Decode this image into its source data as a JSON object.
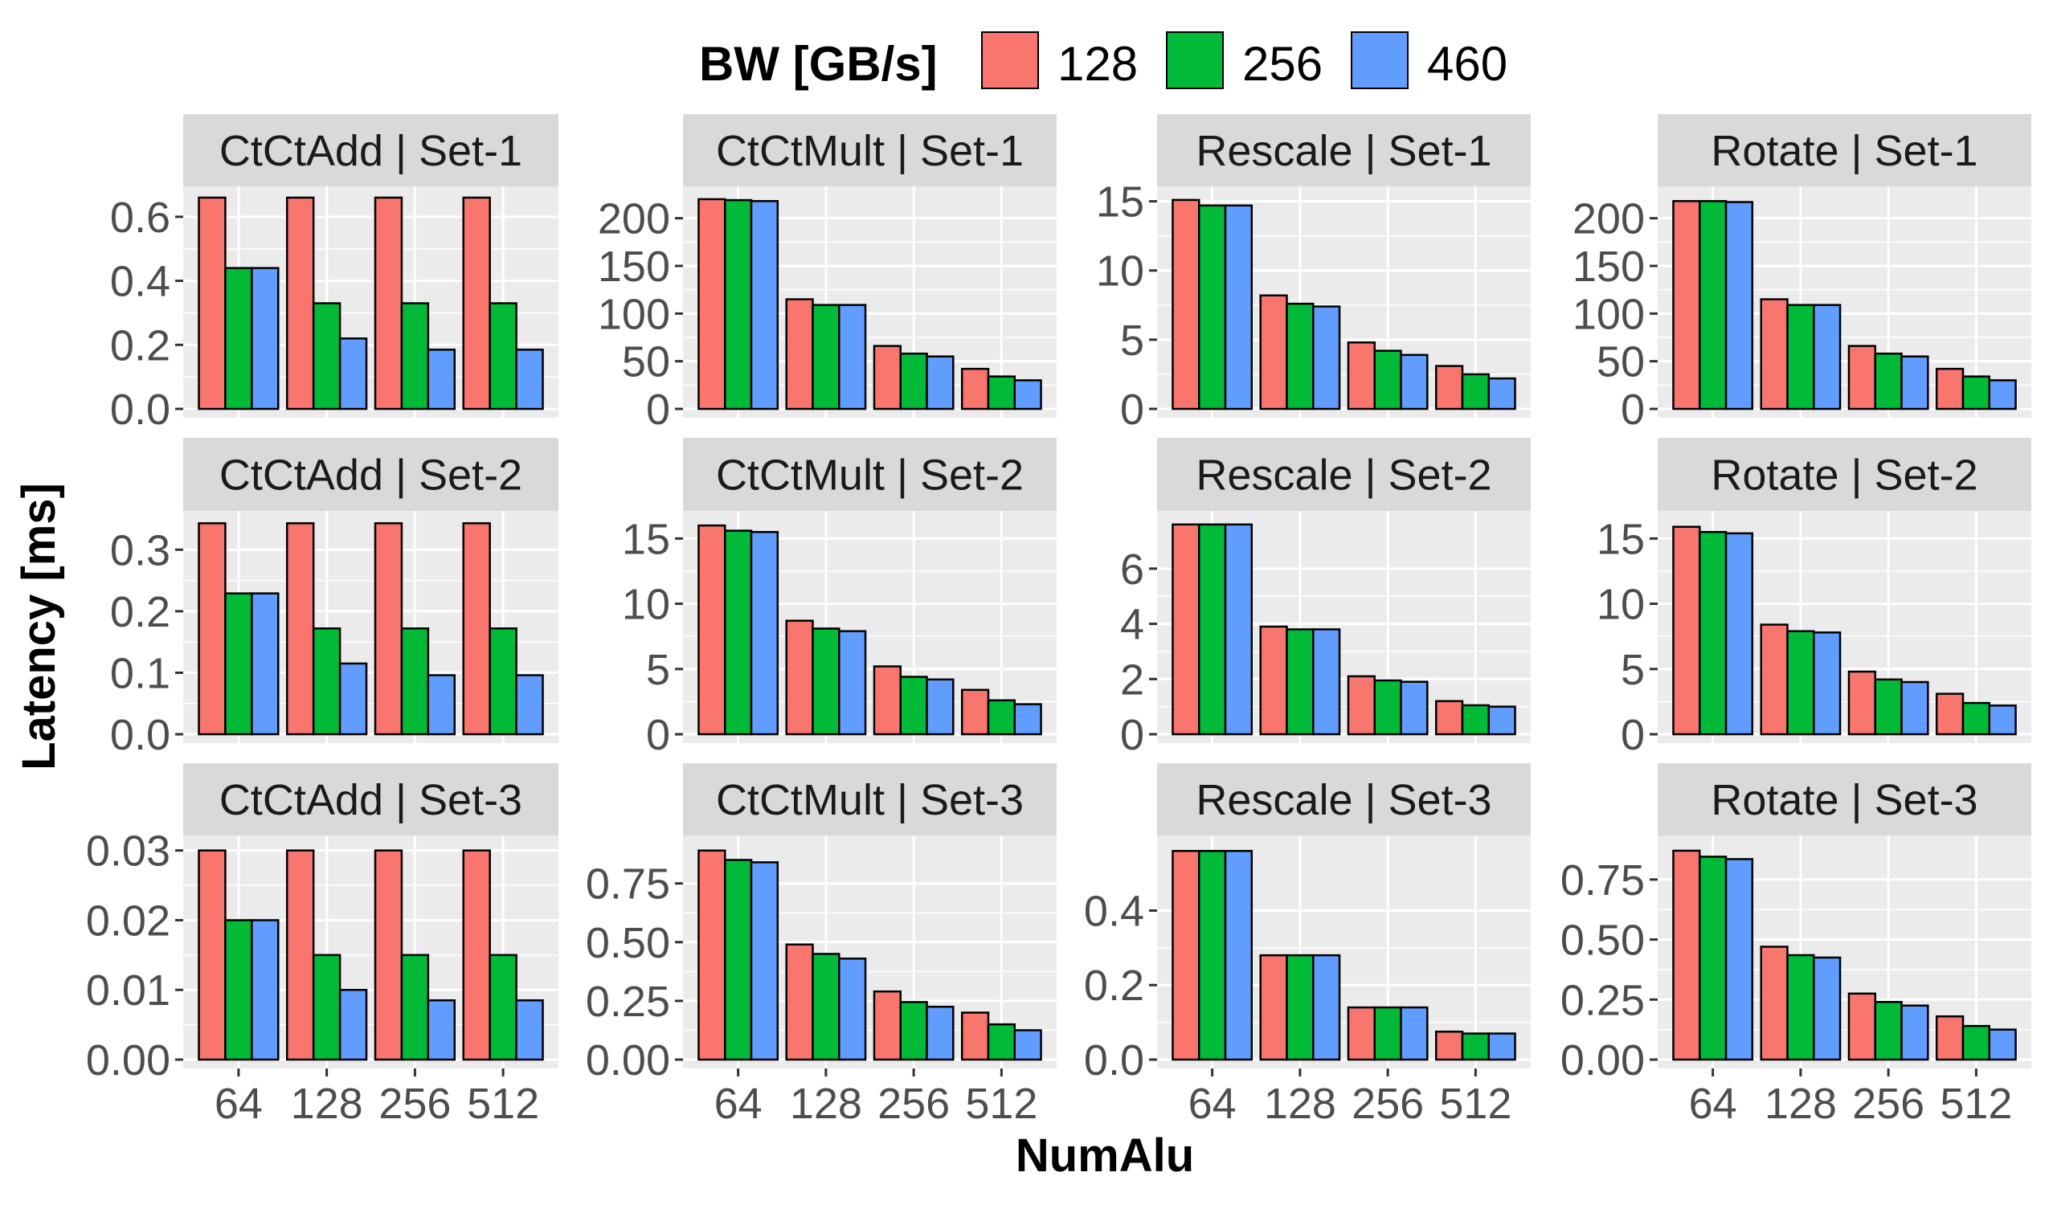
{
  "chart_data": {
    "type": "bar",
    "ylabel": "Latency [ms]",
    "xlabel": "NumAlu",
    "legend": {
      "title": "BW [GB/s]",
      "placement": "top",
      "entries": [
        "128",
        "256",
        "460"
      ],
      "colors": [
        "#F8766D",
        "#00BA38",
        "#619CFF"
      ]
    },
    "categories": [
      "64",
      "128",
      "256",
      "512"
    ],
    "grid": true,
    "facet_rows": [
      "Set-1",
      "Set-2",
      "Set-3"
    ],
    "facet_cols": [
      "CtCtAdd",
      "CtCtMult",
      "Rescale",
      "Rotate"
    ],
    "row_ylims": [
      [
        0,
        0.6
      ],
      [
        0,
        0.36
      ],
      [
        0,
        0.031
      ]
    ],
    "panels": [
      {
        "title": "CtCtAdd | Set-1",
        "ylim": [
          0,
          0.67
        ],
        "yticks": [
          "0.0",
          "0.2",
          "0.4",
          "0.6"
        ],
        "ytick_values": [
          0,
          0.2,
          0.4,
          0.6
        ],
        "series": [
          {
            "name": "128",
            "values": [
              0.66,
              0.66,
              0.66,
              0.66
            ]
          },
          {
            "name": "256",
            "values": [
              0.44,
              0.33,
              0.33,
              0.33
            ]
          },
          {
            "name": "460",
            "values": [
              0.44,
              0.22,
              0.185,
              0.185
            ]
          }
        ]
      },
      {
        "title": "CtCtMult | Set-1",
        "ylim": [
          0,
          225
        ],
        "yticks": [
          "0",
          "50",
          "100",
          "150",
          "200"
        ],
        "ytick_values": [
          0,
          50,
          100,
          150,
          200
        ],
        "series": [
          {
            "name": "128",
            "values": [
              220,
              115,
              66,
              42
            ]
          },
          {
            "name": "256",
            "values": [
              219,
              109,
              58,
              34
            ]
          },
          {
            "name": "460",
            "values": [
              218,
              109,
              55,
              30
            ]
          }
        ]
      },
      {
        "title": "Rescale | Set-1",
        "ylim": [
          0,
          15.5
        ],
        "yticks": [
          "0",
          "5",
          "10",
          "15"
        ],
        "ytick_values": [
          0,
          5,
          10,
          15
        ],
        "series": [
          {
            "name": "128",
            "values": [
              15.1,
              8.2,
              4.8,
              3.1
            ]
          },
          {
            "name": "256",
            "values": [
              14.7,
              7.6,
              4.2,
              2.5
            ]
          },
          {
            "name": "460",
            "values": [
              14.7,
              7.4,
              3.9,
              2.2
            ]
          }
        ]
      },
      {
        "title": "Rotate | Set-1",
        "ylim": [
          0,
          225
        ],
        "yticks": [
          "0",
          "50",
          "100",
          "150",
          "200"
        ],
        "ytick_values": [
          0,
          50,
          100,
          150,
          200
        ],
        "series": [
          {
            "name": "128",
            "values": [
              218,
              115,
              66,
              42
            ]
          },
          {
            "name": "256",
            "values": [
              218,
              109,
              58,
              34
            ]
          },
          {
            "name": "460",
            "values": [
              217,
              109,
              55,
              30
            ]
          }
        ]
      },
      {
        "title": "CtCtAdd | Set-2",
        "ylim": [
          0,
          0.35
        ],
        "yticks": [
          "0.0",
          "0.1",
          "0.2",
          "0.3"
        ],
        "ytick_values": [
          0,
          0.1,
          0.2,
          0.3
        ],
        "series": [
          {
            "name": "128",
            "values": [
              0.343,
              0.343,
              0.343,
              0.343
            ]
          },
          {
            "name": "256",
            "values": [
              0.229,
              0.172,
              0.172,
              0.172
            ]
          },
          {
            "name": "460",
            "values": [
              0.229,
              0.115,
              0.096,
              0.096
            ]
          }
        ]
      },
      {
        "title": "CtCtMult | Set-2",
        "ylim": [
          0,
          16.5
        ],
        "yticks": [
          "0",
          "5",
          "10",
          "15"
        ],
        "ytick_values": [
          0,
          5,
          10,
          15
        ],
        "series": [
          {
            "name": "128",
            "values": [
              16.0,
              8.7,
              5.2,
              3.4
            ]
          },
          {
            "name": "256",
            "values": [
              15.6,
              8.1,
              4.4,
              2.6
            ]
          },
          {
            "name": "460",
            "values": [
              15.5,
              7.9,
              4.2,
              2.3
            ]
          }
        ]
      },
      {
        "title": "Rescale | Set-2",
        "ylim": [
          0,
          7.8
        ],
        "yticks": [
          "0",
          "2",
          "4",
          "6"
        ],
        "ytick_values": [
          0,
          2,
          4,
          6
        ],
        "series": [
          {
            "name": "128",
            "values": [
              7.6,
              3.9,
              2.1,
              1.2
            ]
          },
          {
            "name": "256",
            "values": [
              7.6,
              3.8,
              1.95,
              1.05
            ]
          },
          {
            "name": "460",
            "values": [
              7.6,
              3.8,
              1.9,
              1.0
            ]
          }
        ]
      },
      {
        "title": "Rotate | Set-2",
        "ylim": [
          0,
          16.5
        ],
        "yticks": [
          "0",
          "5",
          "10",
          "15"
        ],
        "ytick_values": [
          0,
          5,
          10,
          15
        ],
        "series": [
          {
            "name": "128",
            "values": [
              15.9,
              8.4,
              4.8,
              3.1
            ]
          },
          {
            "name": "256",
            "values": [
              15.5,
              7.9,
              4.2,
              2.4
            ]
          },
          {
            "name": "460",
            "values": [
              15.4,
              7.8,
              4.0,
              2.2
            ]
          }
        ]
      },
      {
        "title": "CtCtAdd | Set-3",
        "ylim": [
          0,
          0.031
        ],
        "yticks": [
          "0.00",
          "0.01",
          "0.02",
          "0.03"
        ],
        "ytick_values": [
          0,
          0.01,
          0.02,
          0.03
        ],
        "series": [
          {
            "name": "128",
            "values": [
              0.03,
              0.03,
              0.03,
              0.03
            ]
          },
          {
            "name": "256",
            "values": [
              0.02,
              0.015,
              0.015,
              0.015
            ]
          },
          {
            "name": "460",
            "values": [
              0.02,
              0.01,
              0.0085,
              0.0085
            ]
          }
        ]
      },
      {
        "title": "CtCtMult | Set-3",
        "ylim": [
          0,
          0.92
        ],
        "yticks": [
          "0.00",
          "0.25",
          "0.50",
          "0.75"
        ],
        "ytick_values": [
          0,
          0.25,
          0.5,
          0.75
        ],
        "series": [
          {
            "name": "128",
            "values": [
              0.89,
              0.49,
              0.29,
              0.2
            ]
          },
          {
            "name": "256",
            "values": [
              0.85,
              0.45,
              0.245,
              0.15
            ]
          },
          {
            "name": "460",
            "values": [
              0.84,
              0.43,
              0.225,
              0.125
            ]
          }
        ]
      },
      {
        "title": "Rescale | Set-3",
        "ylim": [
          0,
          0.58
        ],
        "yticks": [
          "0.0",
          "0.2",
          "0.4"
        ],
        "ytick_values": [
          0,
          0.2,
          0.4
        ],
        "series": [
          {
            "name": "128",
            "values": [
              0.56,
              0.28,
              0.14,
              0.075
            ]
          },
          {
            "name": "256",
            "values": [
              0.56,
              0.28,
              0.14,
              0.07
            ]
          },
          {
            "name": "460",
            "values": [
              0.56,
              0.28,
              0.14,
              0.07
            ]
          }
        ]
      },
      {
        "title": "Rotate | Set-3",
        "ylim": [
          0,
          0.9
        ],
        "yticks": [
          "0.00",
          "0.25",
          "0.50",
          "0.75"
        ],
        "ytick_values": [
          0,
          0.25,
          0.5,
          0.75
        ],
        "series": [
          {
            "name": "128",
            "values": [
              0.87,
              0.47,
              0.275,
              0.18
            ]
          },
          {
            "name": "256",
            "values": [
              0.845,
              0.435,
              0.24,
              0.14
            ]
          },
          {
            "name": "460",
            "values": [
              0.835,
              0.425,
              0.225,
              0.125
            ]
          }
        ]
      }
    ]
  }
}
